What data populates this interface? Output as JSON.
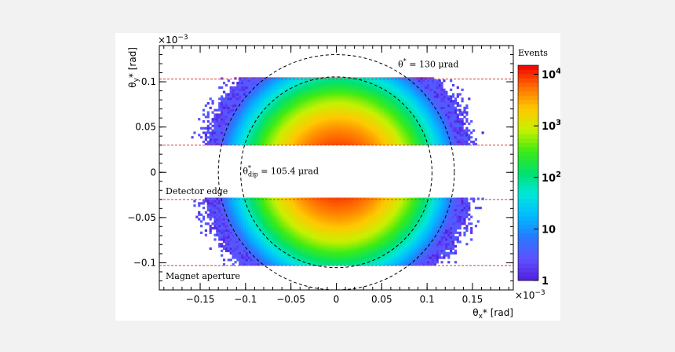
{
  "chart_data": {
    "type": "heatmap",
    "title": "",
    "xlabel": "θ",
    "xlabel_sub": "x",
    "xlabel_rest": "* [rad]",
    "ylabel": "θ",
    "ylabel_sub": "y",
    "ylabel_rest": "* [rad]",
    "xlim": [
      -0.195,
      0.195
    ],
    "ylim": [
      -0.13,
      0.14
    ],
    "x_ticks": [
      -0.15,
      -0.1,
      -0.05,
      0,
      0.05,
      0.1,
      0.15
    ],
    "x_tick_labels": [
      "−0.15",
      "−0.1",
      "−0.05",
      "0",
      "0.05",
      "0.1",
      "0.15"
    ],
    "y_ticks": [
      -0.1,
      -0.05,
      0,
      0.05,
      0.1
    ],
    "y_tick_labels": [
      "−0.1",
      "−0.05",
      "0",
      "0.05",
      "0.1"
    ],
    "x_multiplier": "×10",
    "y_multiplier": "×10",
    "multiplier_exp": "−3",
    "colorbar": {
      "title": "Events",
      "scale": "log",
      "range": [
        1,
        15000
      ],
      "ticks": [
        {
          "value": 1,
          "base": "1",
          "exp": ""
        },
        {
          "value": 10,
          "base": "10",
          "exp": ""
        },
        {
          "value": 100,
          "base": "10",
          "exp": "2"
        },
        {
          "value": 1000,
          "base": "10",
          "exp": "3"
        },
        {
          "value": 10000,
          "base": "10",
          "exp": "4"
        }
      ]
    },
    "distribution": {
      "description_free": true,
      "center": [
        0.002,
        0.0
      ],
      "sigma": 0.033,
      "peak": 12000,
      "accepted_bands": [
        [
          0.03,
          0.103
        ],
        [
          -0.103,
          -0.03
        ]
      ]
    },
    "lines": {
      "detector_edge": [
        -0.03,
        0.03
      ],
      "magnet_aperture": [
        -0.103,
        0.103
      ]
    },
    "circles": [
      {
        "radius": 0.13,
        "label_theta": "θ",
        "label_super": "*",
        "label_rest": " = 130 μrad"
      },
      {
        "radius": 0.1054,
        "label_theta": "θ",
        "label_super": "*",
        "label_sub": "dip",
        "label_rest": " = 105.4 μrad"
      }
    ],
    "annotations": {
      "detector_edge": "Detector edge",
      "magnet_aperture": "Magnet aperture"
    }
  }
}
